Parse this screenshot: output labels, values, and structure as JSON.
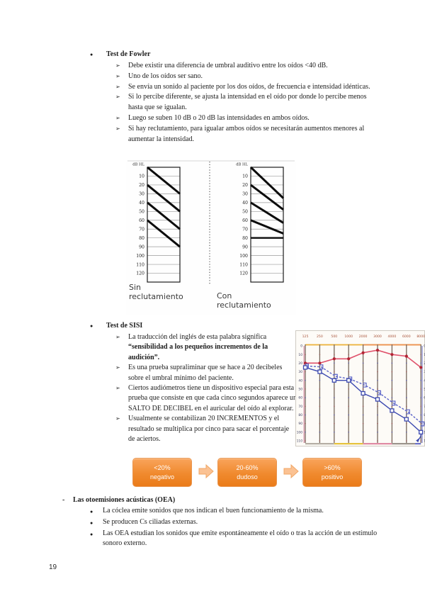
{
  "page_number": "19",
  "glyphs": {
    "l1_bullet": "●",
    "l2_marker": "➢",
    "dash": "-"
  },
  "colors": {
    "accent_orange": "#ee7d1e",
    "arrow_orange": "#fbc293",
    "chart_red_line": "#e0526c",
    "chart_red_marker": "#b22433",
    "chart_blue": "#3c49b0",
    "chart_blue_dashed": "#5a63c8"
  },
  "fowler": {
    "title": "Test de Fowler",
    "items": [
      "Debe existir una diferencia de umbral auditivo entre los oídos <40 dB.",
      "Uno de los oídos ser sano.",
      "Se envía un sonido al paciente por los dos oídos, de frecuencia e intensidad idénticas.",
      "Si lo percibe diferente, se ajusta la intensidad en el oído por donde lo percibe menos hasta que se igualan.",
      "Luego se suben 10 dB o 20 dB las intensidades en ambos oídos.",
      "Si hay reclutamiento, para igualar ambos oídos se necesitarán aumentos menores al aumentar la intensidad."
    ]
  },
  "recruitment_figure": {
    "scale_unit": "dB HL",
    "ticks": [
      10,
      20,
      30,
      40,
      50,
      60,
      70,
      80,
      90,
      100,
      110,
      120
    ],
    "left": {
      "label": "Sin reclutamiento",
      "diagonals_db": [
        [
          0,
          30
        ],
        [
          20,
          50
        ],
        [
          40,
          70
        ],
        [
          60,
          90
        ]
      ]
    },
    "right": {
      "label": "Con reclutamiento",
      "diagonals_db": [
        [
          0,
          35
        ],
        [
          20,
          48
        ],
        [
          40,
          63
        ],
        [
          60,
          75
        ]
      ],
      "plateau_db": 80
    }
  },
  "sisi": {
    "title": "Test de SISI",
    "items": [
      {
        "text": "La traducción del inglés de esta palabra significa ",
        "bold": "“sensibilidad a los pequeños incrementos de la audición”."
      },
      {
        "text": "Es una prueba supraliminar que se hace a 20 decibeles sobre el umbral mínimo del paciente.",
        "bold": ""
      },
      {
        "text": "Ciertos audiómetros tiene un dispositivo especial para esta prueba que consiste en que cada cinco segundos aparece un SALTO DE DECIBEL en el auricular del oído al explorar.",
        "bold": ""
      },
      {
        "text": "Usualmente se contabilizan 20 INCREMENTOS y el resultado se multiplica por cinco para sacar el porcentaje de aciertos.",
        "bold": ""
      }
    ]
  },
  "flow_boxes": [
    {
      "value": "<20%",
      "label": "negativo"
    },
    {
      "value": "20-60%",
      "label": "dudoso"
    },
    {
      "value": ">60%",
      "label": "positivo"
    }
  ],
  "oea": {
    "title": "Las otoemisiones acústicas (OEA)",
    "items": [
      "La cóclea emite sonidos que nos indican el buen funcionamiento de la misma.",
      "Se producen Cs ciliadas externas.",
      "Las OEA estudian los sonidos que emite espontáneamente el oído o tras la acción de un estímulo sonoro externo."
    ]
  },
  "chart_data": {
    "type": "line",
    "title": "",
    "x_ticks": [
      "125",
      "250",
      "500",
      "1000",
      "2000",
      "3000",
      "4000",
      "6000",
      "8000"
    ],
    "y_ticks": [
      0,
      10,
      20,
      30,
      40,
      50,
      60,
      70,
      80,
      90,
      100,
      110
    ],
    "ylim": [
      0,
      110
    ],
    "grid": "vertical",
    "legend": "none",
    "series": [
      {
        "name": "umbral-aereo-rojo",
        "marker": "circle",
        "dashed": false,
        "color": "#e0526c",
        "marker_color": "#b22433",
        "values": [
          20,
          20,
          15,
          15,
          8,
          5,
          10,
          12,
          25
        ]
      },
      {
        "name": "umbral-azul-discontinuo",
        "marker": "bracket",
        "dashed": true,
        "color": "#5a63c8",
        "values": [
          25,
          26,
          37,
          40,
          47,
          56,
          68,
          78,
          92
        ]
      },
      {
        "name": "umbral-azul-continuo",
        "marker": "square",
        "dashed": false,
        "color": "#3c49b0",
        "no_response_last": true,
        "values": [
          25,
          30,
          40,
          40,
          55,
          62,
          75,
          85,
          100
        ]
      }
    ]
  }
}
